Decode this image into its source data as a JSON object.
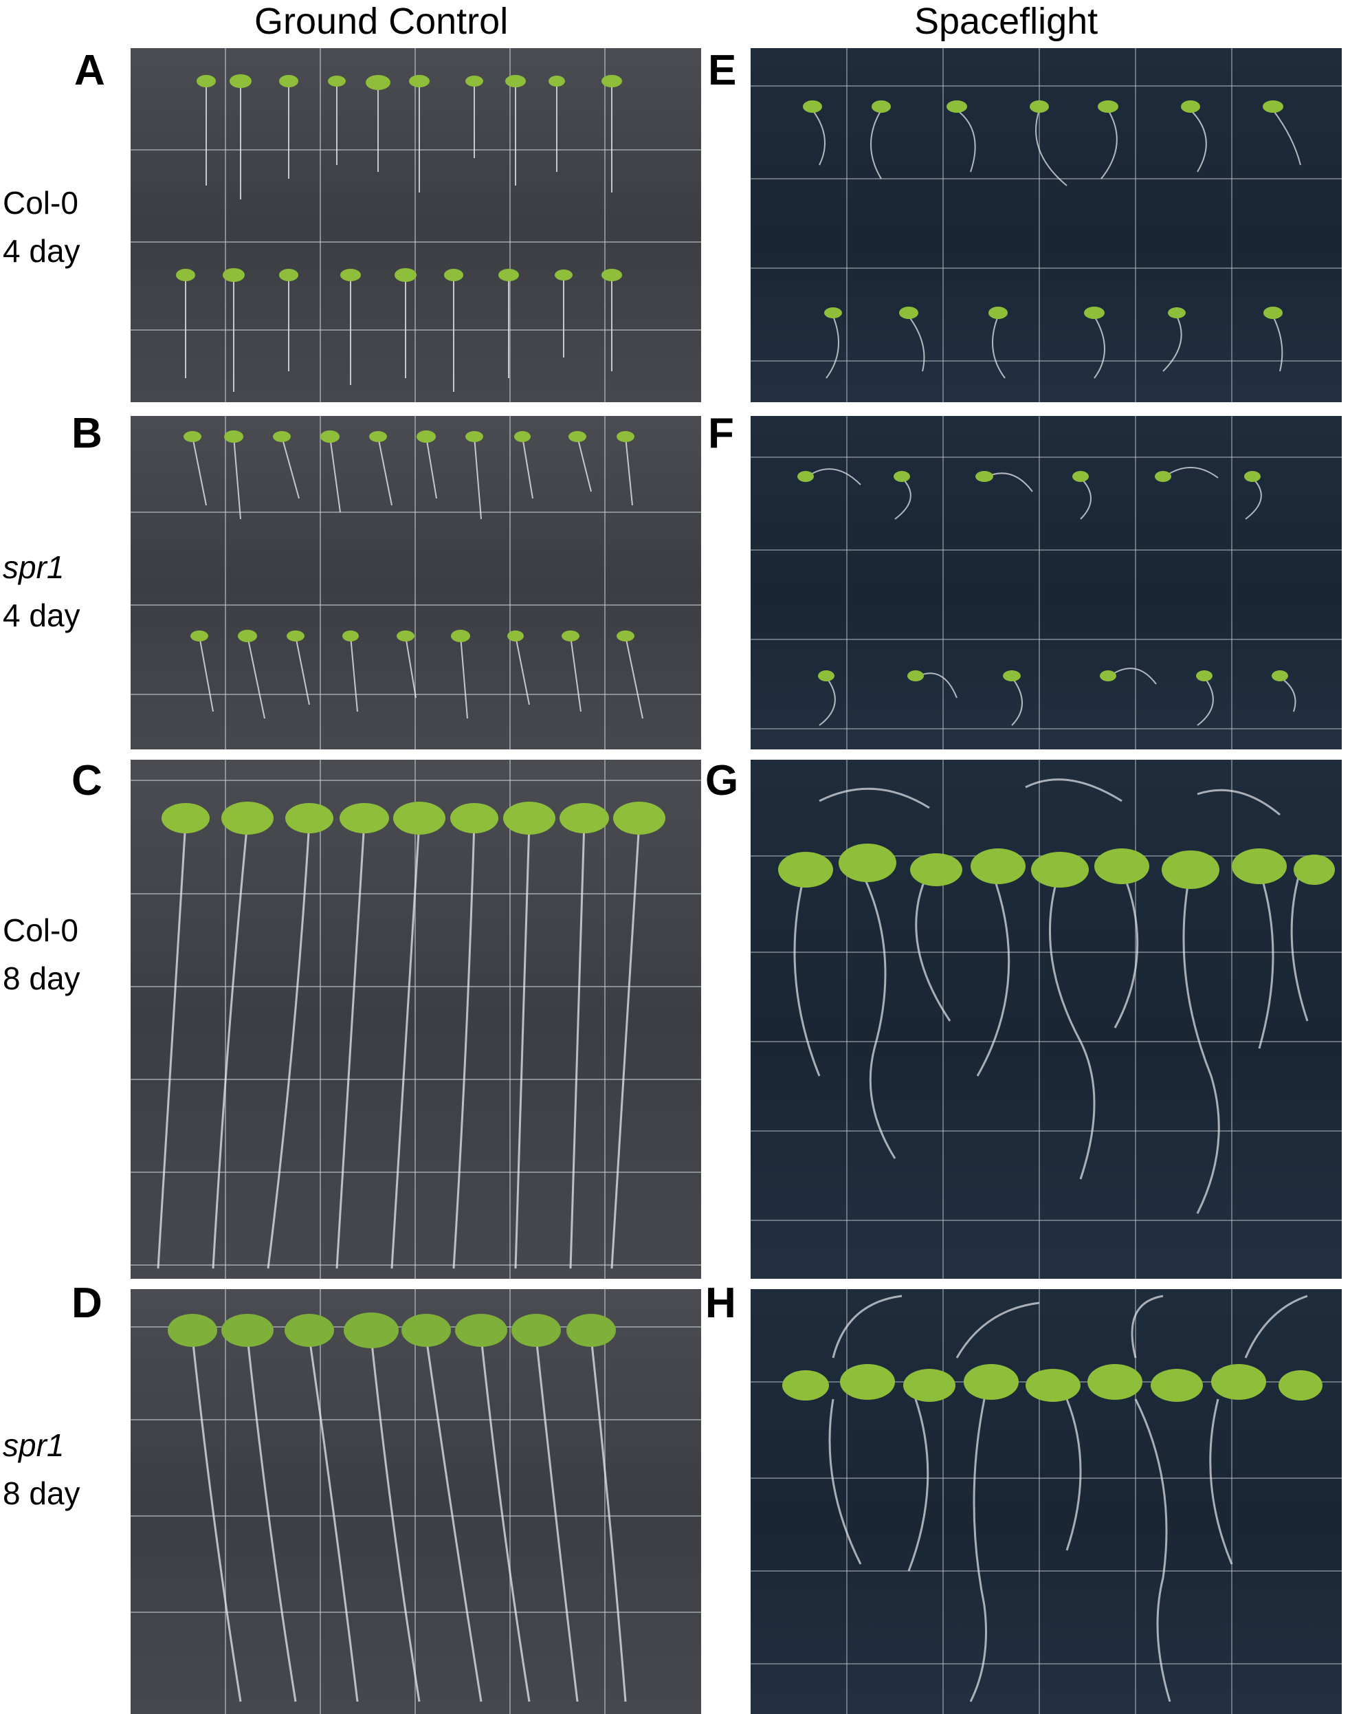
{
  "columns": {
    "ground": "Ground Control",
    "space": "Spaceflight"
  },
  "rows": [
    {
      "line1": "Col-0",
      "line2": "4 day",
      "italic": false
    },
    {
      "line1": "spr1",
      "line2": "4 day",
      "italic": true
    },
    {
      "line1": "Col-0",
      "line2": "8 day",
      "italic": false
    },
    {
      "line1": "spr1",
      "line2": "8 day",
      "italic": true
    }
  ],
  "panels": {
    "A": "A",
    "B": "B",
    "C": "C",
    "D": "D",
    "E": "E",
    "F": "F",
    "G": "G",
    "H": "H"
  },
  "colors": {
    "ground_plate": "#43454b",
    "space_plate": "#1d2938",
    "grid": "#c9ccd2",
    "leaf": "#8fbf3a",
    "root": "#e6e8ec"
  }
}
